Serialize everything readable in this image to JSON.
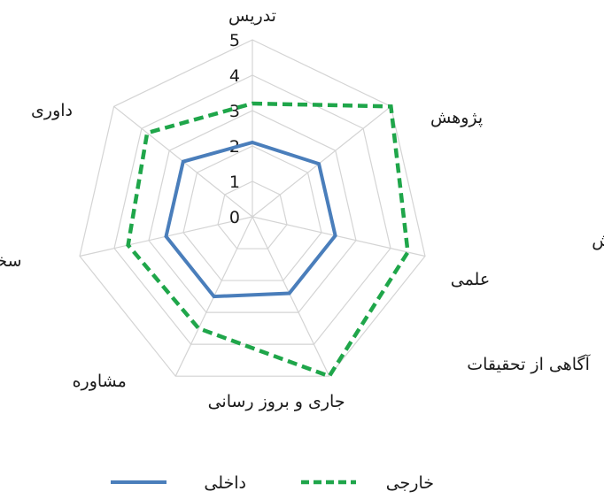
{
  "chart_data": {
    "type": "radar",
    "categories": [
      [
        "تدریس"
      ],
      [
        "پژوهش"
      ],
      [
        "نگارش مقاله  یا گزارش",
        "علمی"
      ],
      [
        "آگاهی از تحقیقات",
        "جاری و بروز رسانی"
      ],
      [
        "مشاوره"
      ],
      [
        "سخنرانی"
      ],
      [
        "داوری"
      ]
    ],
    "ticks": [
      "0",
      "1",
      "2",
      "3",
      "4",
      "5"
    ],
    "rmin": 0,
    "rmax": 5,
    "grid": true,
    "legend_position": "bottom",
    "series": [
      {
        "name": "داخلی",
        "values": [
          2.1,
          2.4,
          2.4,
          2.4,
          2.5,
          2.5,
          2.5
        ],
        "color": "#4a7ebb",
        "style": "solid"
      },
      {
        "name": "خارجی",
        "values": [
          3.2,
          5.0,
          4.5,
          5.0,
          3.5,
          3.6,
          3.8
        ],
        "color": "#1fa64a",
        "style": "dashed"
      }
    ]
  }
}
